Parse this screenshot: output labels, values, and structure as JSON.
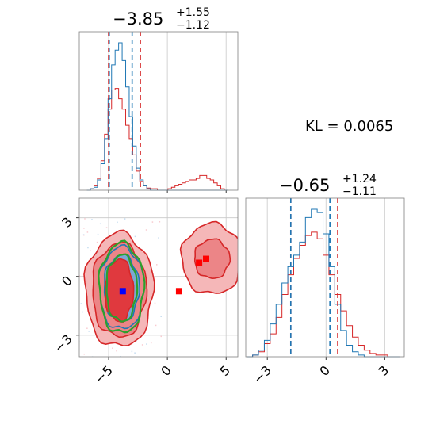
{
  "chart_data": {
    "type": "corner",
    "kl_text": "KL = 0.0065",
    "colors": {
      "blue": "#1f77b4",
      "red": "#d62728",
      "green": "#2ca02c",
      "grid": "#c8c8c8",
      "marker_blue": "#0000ff",
      "marker_red": "#ff0000"
    },
    "params": [
      {
        "title": {
          "median": "−3.85",
          "plus": "+1.55",
          "minus": "−1.12"
        },
        "range": [
          -7.5,
          6
        ],
        "ticks": [
          -5,
          0,
          5
        ],
        "tick_labels": [
          "−5",
          "0",
          "5"
        ],
        "quantiles_blue": [
          -4.95,
          -3.0
        ],
        "quantiles_red": [
          -5.0,
          -2.3
        ]
      },
      {
        "title": {
          "median": "−0.65",
          "plus": "+1.24",
          "minus": "−1.11"
        },
        "range": [
          -4.1,
          4.0
        ],
        "ticks": [
          -3,
          0,
          3
        ],
        "tick_labels": [
          "−3",
          "0",
          "3"
        ],
        "quantiles_blue": [
          -1.8,
          0.2
        ],
        "quantiles_red": [
          -1.8,
          0.6
        ]
      }
    ],
    "hist_p1": {
      "x": [
        -6.7,
        -6.4,
        -6.1,
        -5.8,
        -5.5,
        -5.2,
        -4.9,
        -4.6,
        -4.3,
        -4.0,
        -3.7,
        -3.4,
        -3.1,
        -2.8,
        -2.5,
        -2.2,
        -1.9,
        -1.6,
        -1.3,
        -1.0,
        -0.7,
        -0.4,
        -0.1,
        0.2,
        0.5,
        0.8,
        1.1,
        1.4,
        1.7,
        2.0,
        2.3,
        2.6,
        2.9,
        3.2,
        3.5,
        3.8,
        4.1,
        4.4,
        4.7,
        5.0
      ],
      "blue": [
        0.0,
        0.01,
        0.02,
        0.07,
        0.18,
        0.35,
        0.62,
        0.85,
        0.95,
        1.0,
        0.88,
        0.7,
        0.5,
        0.3,
        0.15,
        0.07,
        0.03,
        0.01,
        0.0,
        0.0,
        0.0,
        0.0,
        0.0,
        0.0,
        0.0,
        0.0,
        0.0,
        0.0,
        0.0,
        0.0,
        0.0,
        0.0,
        0.0,
        0.0,
        0.0,
        0.0,
        0.0,
        0.0,
        0.0,
        0.0
      ],
      "red": [
        0.0,
        0.01,
        0.03,
        0.08,
        0.2,
        0.38,
        0.55,
        0.68,
        0.69,
        0.62,
        0.55,
        0.44,
        0.35,
        0.24,
        0.13,
        0.06,
        0.03,
        0.015,
        0.01,
        0.01,
        0.0,
        0.0,
        0.0,
        0.01,
        0.02,
        0.03,
        0.04,
        0.05,
        0.06,
        0.07,
        0.07,
        0.08,
        0.1,
        0.1,
        0.08,
        0.07,
        0.05,
        0.03,
        0.01,
        0.0
      ]
    },
    "hist_p2": {
      "x": [
        -3.9,
        -3.6,
        -3.3,
        -3.0,
        -2.7,
        -2.4,
        -2.1,
        -1.8,
        -1.5,
        -1.2,
        -0.9,
        -0.6,
        -0.3,
        0.0,
        0.3,
        0.6,
        0.9,
        1.2,
        1.5,
        1.8,
        2.1,
        2.4,
        2.7,
        3.0,
        3.3,
        3.6
      ],
      "blue": [
        0.0,
        0.01,
        0.04,
        0.1,
        0.2,
        0.32,
        0.45,
        0.55,
        0.62,
        0.7,
        0.85,
        0.9,
        0.88,
        0.75,
        0.55,
        0.32,
        0.16,
        0.07,
        0.03,
        0.01,
        0.0,
        0.0,
        0.0,
        0.0,
        0.0,
        0.0
      ],
      "red": [
        0.0,
        0.01,
        0.03,
        0.08,
        0.14,
        0.24,
        0.38,
        0.5,
        0.6,
        0.68,
        0.74,
        0.76,
        0.72,
        0.62,
        0.5,
        0.38,
        0.28,
        0.19,
        0.12,
        0.07,
        0.04,
        0.02,
        0.01,
        0.01,
        0.0,
        0.0
      ]
    },
    "contours_2d": {
      "red_main": {
        "cx": -4.1,
        "cy": -0.7,
        "rx_levels": [
          2.9,
          2.3,
          1.2
        ],
        "ry_levels": [
          2.9,
          2.4,
          1.6
        ]
      },
      "blue_main": {
        "cx": -3.9,
        "cy": -0.6,
        "rx_levels": [
          1.9,
          1.5,
          0.9
        ],
        "ry_levels": [
          2.1,
          1.7,
          1.2
        ]
      },
      "green_main": {
        "cx": -3.9,
        "cy": -0.6,
        "rx_levels": [
          1.9,
          1.3
        ],
        "ry_levels": [
          2.3,
          1.7
        ]
      },
      "red_secondary": {
        "cx": 3.8,
        "cy": 0.9,
        "rx_levels": [
          2.6,
          1.5
        ],
        "ry_levels": [
          1.8,
          1.0
        ]
      }
    },
    "markers_2d": {
      "blue": [
        {
          "x": -3.8,
          "y": -0.75
        }
      ],
      "red": [
        {
          "x": 1.0,
          "y": -0.75
        },
        {
          "x": 2.7,
          "y": 0.7
        },
        {
          "x": 3.3,
          "y": 0.9
        }
      ]
    }
  }
}
